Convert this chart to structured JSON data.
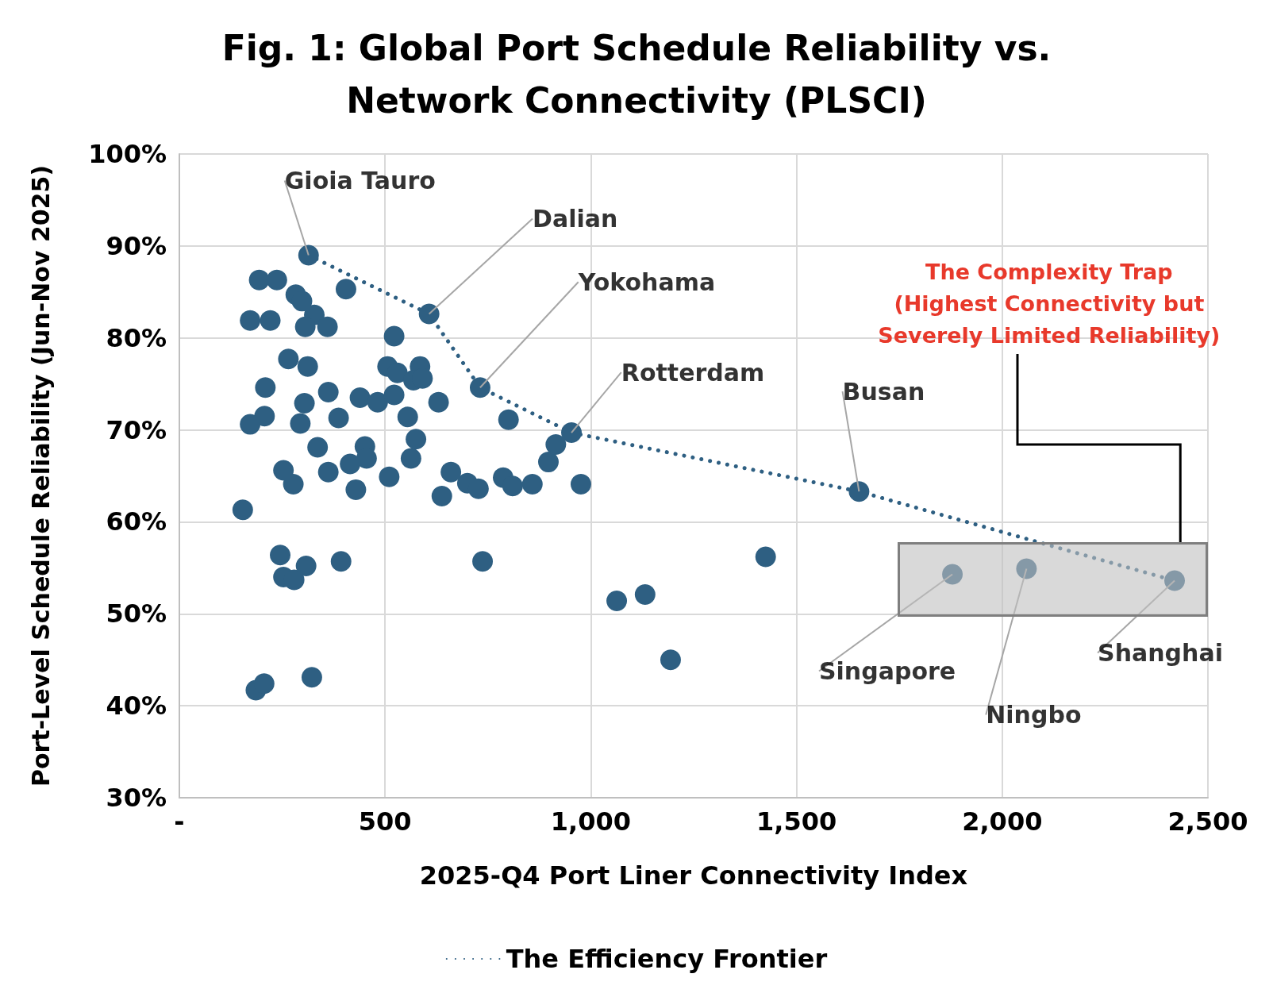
{
  "chart_data": {
    "type": "scatter",
    "title": "Fig. 1: Global Port Schedule Reliability vs.\nNetwork Connectivity (PLSCI)",
    "xlabel": "2025-Q4 Port Liner Connectivity Index",
    "ylabel": "Port-Level Schedule Reliability (Jun-Nov 2025)",
    "xlim": [
      0,
      2500
    ],
    "xticks": [
      {
        "value": 0,
        "label": "-"
      },
      500,
      {
        "value": 1000,
        "label": "1,000"
      },
      {
        "value": 1500,
        "label": "1,500"
      },
      {
        "value": 2000,
        "label": "2,000"
      },
      {
        "value": 2500,
        "label": "2,500"
      }
    ],
    "ylim": [
      30,
      100
    ],
    "yticks": [
      {
        "value": 30,
        "label": "30%"
      },
      {
        "value": 40,
        "label": "40%"
      },
      {
        "value": 50,
        "label": "50%"
      },
      {
        "value": 60,
        "label": "60%"
      },
      {
        "value": 70,
        "label": "70%"
      },
      {
        "value": 80,
        "label": "80%"
      },
      {
        "value": 90,
        "label": "90%"
      },
      {
        "value": 100,
        "label": "100%"
      }
    ],
    "grid": true,
    "legend": "bottom",
    "annotations": [
      {
        "text": "Gioia Tauro",
        "x": 314,
        "y": 89
      },
      {
        "text": "Dalian",
        "x": 607,
        "y": 82.6
      },
      {
        "text": "Yokohama",
        "x": 731,
        "y": 74.6
      },
      {
        "text": "Rotterdam",
        "x": 953,
        "y": 69.7
      },
      {
        "text": "Busan",
        "x": 1652,
        "y": 63.3
      },
      {
        "text": "Singapore",
        "x": 1879,
        "y": 54.3
      },
      {
        "text": "Ningbo",
        "x": 2059,
        "y": 54.9
      },
      {
        "text": "Shanghai",
        "x": 2419,
        "y": 53.6
      },
      "The Complexity Trap\n(Highest Connectivity but\nSeverely Limited Reliability)"
    ],
    "series": [
      {
        "type": "scatter",
        "color": "#2e5f82",
        "marker": "circle",
        "x": [
          314,
          194,
          237,
          172,
          221,
          283,
          298,
          328,
          306,
          360,
          405,
          607,
          522,
          265,
          312,
          209,
          207,
          172,
          304,
          294,
          362,
          387,
          336,
          362,
          253,
          277,
          439,
          482,
          506,
          530,
          522,
          555,
          585,
          569,
          591,
          575,
          563,
          630,
          451,
          455,
          415,
          429,
          510,
          638,
          660,
          700,
          727,
          731,
          800,
          787,
          810,
          858,
          897,
          915,
          953,
          976,
          154,
          245,
          253,
          279,
          308,
          393,
          737,
          186,
          206,
          322,
          1063,
          1132,
          1194,
          1425,
          1652,
          1879,
          2059,
          2419
        ],
        "values": [
          89.0,
          86.3,
          86.3,
          81.9,
          81.9,
          84.7,
          84.0,
          82.5,
          81.2,
          81.2,
          85.3,
          82.6,
          80.2,
          77.7,
          76.9,
          74.6,
          71.5,
          70.6,
          72.9,
          70.7,
          74.1,
          71.3,
          68.1,
          65.4,
          65.6,
          64.1,
          73.5,
          73.0,
          76.9,
          76.2,
          73.8,
          71.4,
          76.9,
          75.4,
          75.6,
          69.0,
          66.9,
          73.0,
          68.2,
          66.9,
          66.3,
          63.5,
          64.9,
          62.8,
          65.4,
          64.2,
          63.6,
          74.6,
          71.1,
          64.8,
          63.9,
          64.1,
          66.5,
          68.4,
          69.7,
          64.1,
          61.3,
          56.4,
          54.0,
          53.7,
          55.2,
          55.7,
          55.7,
          41.7,
          42.4,
          43.1,
          51.4,
          52.1,
          45.0,
          56.2,
          63.3,
          54.3,
          54.9,
          53.6
        ]
      },
      {
        "type": "line",
        "name": "The Efficiency Frontier",
        "color": "#2e5f82",
        "line_style": "dotted",
        "marker": "none",
        "x": [
          314,
          607,
          731,
          953,
          1652,
          2419
        ],
        "values": [
          89.0,
          82.6,
          74.6,
          69.7,
          63.3,
          53.6
        ]
      }
    ]
  }
}
